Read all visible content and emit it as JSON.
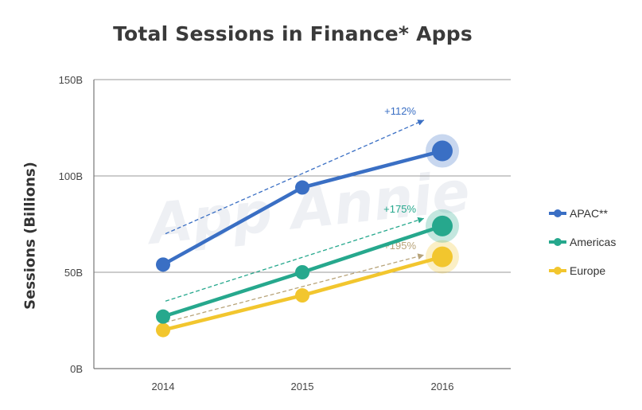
{
  "chart_data": {
    "type": "line",
    "title": "Total Sessions in Finance* Apps",
    "ylabel": "Sessions (Billions)",
    "xlabel": "",
    "categories": [
      "2014",
      "2015",
      "2016"
    ],
    "ylim": [
      0,
      150
    ],
    "yticks": [
      {
        "value": 0,
        "label": "0B"
      },
      {
        "value": 50,
        "label": "50B"
      },
      {
        "value": 100,
        "label": "100B"
      },
      {
        "value": 150,
        "label": "150B"
      }
    ],
    "grid": true,
    "legend_position": "right",
    "watermark": "App Annie",
    "series": [
      {
        "name": "APAC**",
        "color": "#3a6fc4",
        "values": [
          54,
          94,
          113
        ],
        "growth_label": "+112%",
        "label_color": "#3a6fc4"
      },
      {
        "name": "Americas",
        "color": "#26a88d",
        "values": [
          27,
          50,
          74
        ],
        "growth_label": "+175%",
        "label_color": "#26a88d"
      },
      {
        "name": "Europe",
        "color": "#f2c62e",
        "values": [
          20,
          38,
          58
        ],
        "growth_label": "+195%",
        "label_color": "#b8a47a"
      }
    ],
    "growth_arrows": [
      {
        "series": "APAC**",
        "from": 70,
        "to": 129
      },
      {
        "series": "Americas",
        "from": 35,
        "to": 78
      },
      {
        "series": "Europe",
        "from": 24,
        "to": 59
      }
    ]
  }
}
